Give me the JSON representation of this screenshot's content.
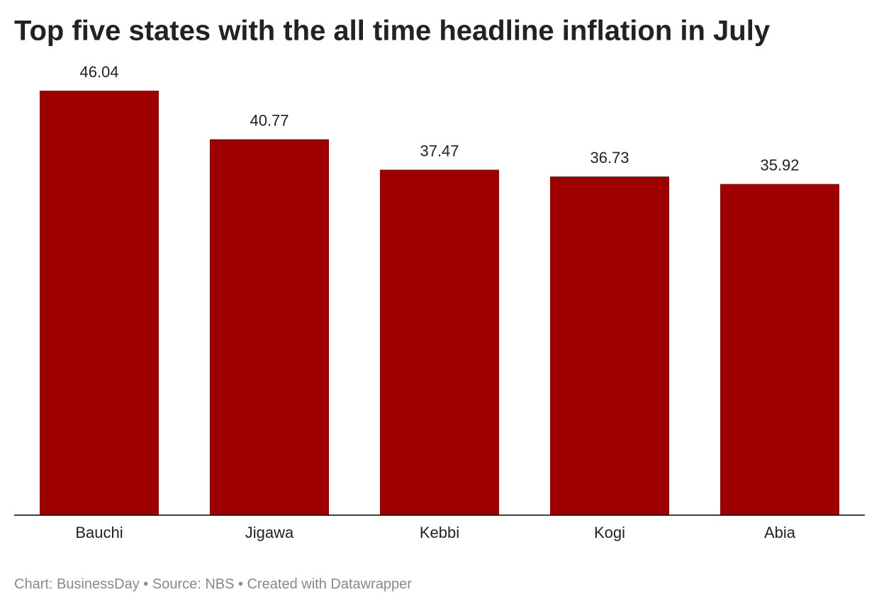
{
  "chart_data": {
    "type": "bar",
    "title": "Top five states with the all time headline inflation in July",
    "categories": [
      "Bauchi",
      "Jigawa",
      "Kebbi",
      "Kogi",
      "Abia"
    ],
    "values": [
      46.04,
      40.77,
      37.47,
      36.73,
      35.92
    ],
    "color": "#9e0000",
    "source": "Chart: BusinessDay • Source: NBS • Created with Datawrapper"
  }
}
